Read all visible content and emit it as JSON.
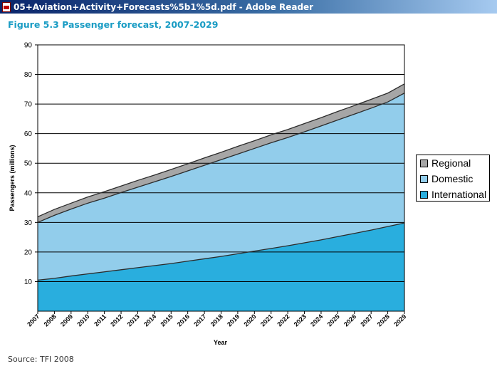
{
  "window": {
    "title": "05+Aviation+Activity+Forecasts%5b1%5d.pdf - Adobe Reader",
    "icon": "pdf-file-icon"
  },
  "figure": {
    "title": "Figure 5.3 Passenger forecast, 2007-2029",
    "source": "Source: TFI 2008"
  },
  "colors": {
    "title": "#1a9cc4",
    "regional": "#a6a6a6",
    "domestic": "#92cdeb",
    "international": "#29aede"
  },
  "chart_data": {
    "type": "area",
    "stacked": true,
    "title": "",
    "xlabel": "Year",
    "ylabel": "Passengers (millions)",
    "ylim": [
      0,
      90
    ],
    "yticks": [
      10,
      20,
      30,
      40,
      50,
      60,
      70,
      80,
      90
    ],
    "grid": true,
    "legend_position": "right",
    "x": [
      "2007",
      "2008",
      "2009",
      "2010",
      "2011",
      "2012",
      "2013",
      "2014",
      "2015",
      "2016",
      "2017",
      "2018",
      "2019",
      "2020",
      "2021",
      "2022",
      "2023",
      "2024",
      "2025",
      "2026",
      "2027",
      "2028",
      "2029"
    ],
    "series": [
      {
        "name": "International",
        "values": [
          10.5,
          11.1,
          11.9,
          12.6,
          13.3,
          14.0,
          14.7,
          15.4,
          16.1,
          16.9,
          17.7,
          18.5,
          19.4,
          20.3,
          21.2,
          22.1,
          23.1,
          24.1,
          25.2,
          26.3,
          27.4,
          28.6,
          29.8
        ]
      },
      {
        "name": "Domestic",
        "values": [
          19.5,
          21.3,
          22.6,
          23.9,
          24.9,
          26.1,
          27.2,
          28.3,
          29.4,
          30.5,
          31.6,
          32.7,
          33.7,
          34.7,
          35.7,
          36.6,
          37.5,
          38.5,
          39.4,
          40.3,
          41.2,
          42.1,
          43.9
        ]
      },
      {
        "name": "Regional",
        "values": [
          1.9,
          2.0,
          2.0,
          2.1,
          2.2,
          2.2,
          2.3,
          2.3,
          2.4,
          2.4,
          2.5,
          2.5,
          2.6,
          2.6,
          2.7,
          2.7,
          2.8,
          2.8,
          2.9,
          2.9,
          3.0,
          3.0,
          3.1
        ]
      }
    ]
  }
}
